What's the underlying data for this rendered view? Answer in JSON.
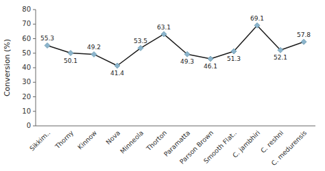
{
  "chart_data": {
    "type": "line",
    "categories": [
      "Sikkim..",
      "Thorny",
      "Kinnow",
      "Nova",
      "Minneola",
      "Thorton",
      "Paramatta",
      "Parson Brown",
      "Smooth Flat..",
      "C. jambhiri",
      "C. reshni",
      "C. medurensis"
    ],
    "values": [
      55.3,
      50.1,
      49.2,
      41.4,
      53.5,
      63.1,
      49.3,
      46.1,
      51.3,
      69.1,
      52.1,
      57.8
    ],
    "ylabel": "Conversion (%)",
    "ylim": [
      0,
      80
    ],
    "yticks": [
      0,
      10,
      20,
      30,
      40,
      50,
      60,
      70,
      80
    ],
    "color": "#1a1a1a",
    "marker": "diamond",
    "data_labels": true,
    "grid": false
  }
}
